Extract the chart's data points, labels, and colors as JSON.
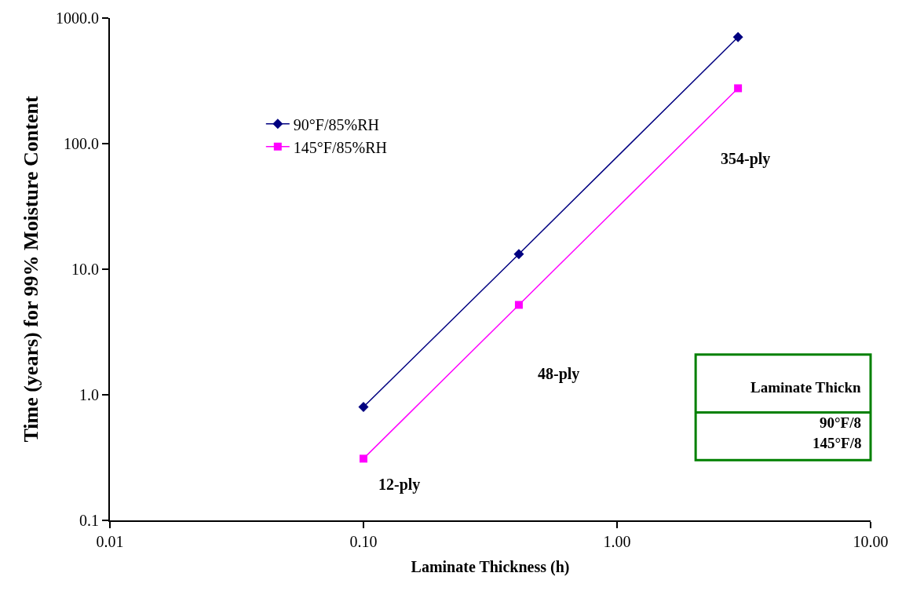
{
  "chart_data": {
    "type": "line",
    "xlabel": "Laminate Thickness (h)",
    "ylabel": "Time (years) for 99% Moisture Content",
    "x": [
      0.1,
      0.41,
      3.0
    ],
    "series": [
      {
        "name": "90°F/85%RH",
        "color": "#000080",
        "values": [
          0.8,
          13.2,
          706
        ],
        "marker": "diamond"
      },
      {
        "name": "145°F/85%RH",
        "color": "#ff00ff",
        "values": [
          0.31,
          5.2,
          276
        ],
        "marker": "square"
      }
    ],
    "log": "xy",
    "xlim": [
      0.01,
      10
    ],
    "ylim": [
      0.1,
      1000
    ],
    "xticks": [
      {
        "value": 0.01,
        "label": "0.01"
      },
      {
        "value": 0.1,
        "label": "0.10"
      },
      {
        "value": 1,
        "label": "1.00"
      },
      {
        "value": 10,
        "label": "10.00"
      }
    ],
    "yticks": [
      {
        "value": 0.1,
        "label": "0.1"
      },
      {
        "value": 1,
        "label": "1.0"
      },
      {
        "value": 10,
        "label": "10.0"
      },
      {
        "value": 100,
        "label": "100.0"
      },
      {
        "value": 1000,
        "label": "1000.0"
      }
    ],
    "legend": "top left",
    "line_style": "solid",
    "annotations": [
      "12-ply",
      "48-ply",
      "354-ply",
      "Laminate Thickn",
      "90°F/8",
      "145°F/8"
    ]
  }
}
